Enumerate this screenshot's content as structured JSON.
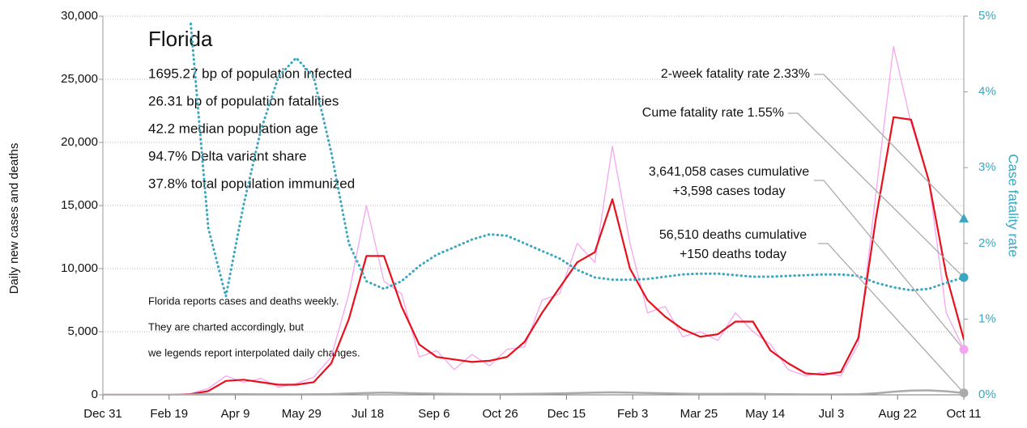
{
  "chart_data": {
    "type": "line",
    "title": "Florida",
    "stats": [
      "1695.27 bp of population infected",
      "26.31 bp of population fatalities",
      "42.2 median population age",
      "94.7% Delta variant share",
      "37.8% total population immunized"
    ],
    "notes": [
      "Florida reports cases and deaths weekly.",
      "They are charted accordingly, but",
      "we legends report interpolated daily changes."
    ],
    "ylabel": "Daily new cases and deaths",
    "y2label": "Case fatality rate",
    "x": [
      0,
      13,
      26,
      39,
      52,
      65,
      78,
      91,
      104,
      117,
      130,
      143,
      156,
      169,
      182,
      195,
      208,
      221,
      234,
      247,
      260,
      273,
      286,
      299,
      312,
      325,
      338,
      351,
      364,
      377,
      390,
      403,
      416,
      429,
      442,
      455,
      468,
      481,
      494,
      507,
      520,
      533,
      546,
      559,
      572,
      585,
      598,
      611,
      624,
      637
    ],
    "xlim": [
      0,
      637
    ],
    "xticks": [
      {
        "value": 0,
        "label": "Dec 31"
      },
      {
        "value": 49,
        "label": "Feb 19"
      },
      {
        "value": 98,
        "label": "Apr 9"
      },
      {
        "value": 147,
        "label": "May 29"
      },
      {
        "value": 196,
        "label": "Jul 18"
      },
      {
        "value": 245,
        "label": "Sep 6"
      },
      {
        "value": 294,
        "label": "Oct 26"
      },
      {
        "value": 343,
        "label": "Dec 15"
      },
      {
        "value": 392,
        "label": "Feb 3"
      },
      {
        "value": 441,
        "label": "Mar 25"
      },
      {
        "value": 490,
        "label": "May 14"
      },
      {
        "value": 539,
        "label": "Jul 3"
      },
      {
        "value": 588,
        "label": "Aug 22"
      },
      {
        "value": 637,
        "label": "Oct 11"
      }
    ],
    "ylim": [
      0,
      30000
    ],
    "yticks": [
      0,
      {
        "value": 5000,
        "label": "5,000"
      },
      {
        "value": 10000,
        "label": "10,000"
      },
      {
        "value": 15000,
        "label": "15,000"
      },
      {
        "value": 20000,
        "label": "20,000"
      },
      {
        "value": 25000,
        "label": "25,000"
      },
      {
        "value": 30000,
        "label": "30,000"
      }
    ],
    "y2lim": [
      0,
      5
    ],
    "y2ticks": [
      {
        "value": 0,
        "label": "0%"
      },
      {
        "value": 1,
        "label": "1%"
      },
      {
        "value": 2,
        "label": "2%"
      },
      {
        "value": 3,
        "label": "3%"
      },
      {
        "value": 4,
        "label": "4%"
      },
      {
        "value": 5,
        "label": "5%"
      }
    ],
    "grid": true,
    "series": [
      {
        "color": "#f4a6f0",
        "width": 1.3,
        "values": [
          0,
          0,
          0,
          0,
          0,
          100,
          500,
          1500,
          1000,
          1300,
          600,
          900,
          1400,
          3000,
          8000,
          15000,
          9000,
          8000,
          3000,
          3500,
          2000,
          3200,
          2300,
          3600,
          3800,
          7500,
          8000,
          12000,
          10500,
          19700,
          12000,
          6500,
          7000,
          4600,
          5000,
          4300,
          6500,
          5000,
          4000,
          2000,
          1500,
          1800,
          1500,
          4000,
          16000,
          27600,
          21500,
          17000,
          6500,
          3600
        ]
      },
      {
        "color": "#e8101c",
        "width": 2.2,
        "values": [
          0,
          0,
          0,
          0,
          0,
          50,
          300,
          1100,
          1200,
          1000,
          800,
          800,
          1000,
          2500,
          6000,
          11000,
          11000,
          7000,
          4000,
          3000,
          2800,
          2600,
          2700,
          3000,
          4200,
          6500,
          8500,
          10500,
          11300,
          15500,
          10000,
          7500,
          6200,
          5200,
          4600,
          4800,
          5800,
          5800,
          3500,
          2500,
          1700,
          1600,
          1800,
          4500,
          14000,
          22000,
          21800,
          17000,
          9500,
          4400
        ]
      },
      {
        "color": "#aaaaaa",
        "width": 2.5,
        "values": [
          0,
          0,
          0,
          0,
          0,
          10,
          60,
          60,
          50,
          40,
          40,
          30,
          40,
          60,
          100,
          150,
          180,
          150,
          110,
          90,
          70,
          60,
          60,
          60,
          70,
          90,
          110,
          140,
          170,
          200,
          180,
          150,
          120,
          90,
          70,
          70,
          80,
          80,
          60,
          45,
          35,
          30,
          30,
          50,
          120,
          250,
          340,
          350,
          280,
          150
        ]
      },
      {
        "color": "#3aa6c0",
        "width": 3,
        "dashed": true,
        "axis": "y2",
        "values": [
          null,
          null,
          null,
          null,
          null,
          4.9,
          2.2,
          1.3,
          2.5,
          3.5,
          4.2,
          4.45,
          4.2,
          3.2,
          2.0,
          1.5,
          1.4,
          1.5,
          1.7,
          1.85,
          1.95,
          2.05,
          2.12,
          2.1,
          2.0,
          1.9,
          1.8,
          1.65,
          1.55,
          1.52,
          1.52,
          1.53,
          1.56,
          1.59,
          1.6,
          1.6,
          1.58,
          1.56,
          1.56,
          1.57,
          1.58,
          1.59,
          1.59,
          1.57,
          1.48,
          1.42,
          1.38,
          1.4,
          1.48,
          1.55
        ]
      }
    ],
    "markers": [
      {
        "value": 2.33,
        "axis": "y2",
        "shape": "triangle",
        "color": "#3aa6c0",
        "lines": [
          "2-week fatality rate 2.33%"
        ]
      },
      {
        "value": 1.55,
        "axis": "y2",
        "shape": "circle",
        "color": "#3aa6c0",
        "lines": [
          "Cume fatality rate 1.55%"
        ]
      },
      {
        "value": 3598,
        "shape": "circle",
        "color": "#f4a6f0",
        "lines": [
          "3,641,058 cases cumulative",
          "+3,598 cases today"
        ]
      },
      {
        "value": 150,
        "shape": "circle",
        "color": "#aaaaaa",
        "lines": [
          "56,510 deaths cumulative",
          "+150 deaths today"
        ]
      }
    ]
  }
}
